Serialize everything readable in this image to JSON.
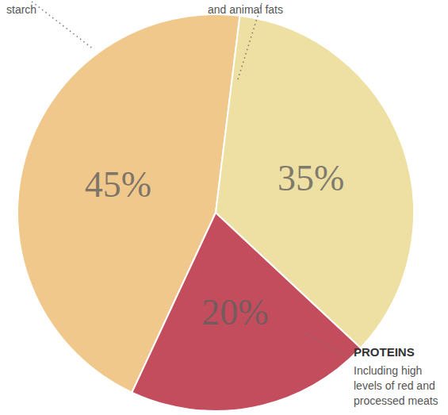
{
  "chart_data": {
    "type": "pie",
    "values": [
      45,
      35,
      20
    ],
    "value_labels": [
      "45%",
      "35%",
      "20%"
    ],
    "colors": [
      "#f1c88c",
      "#eee0a2",
      "#c44d5d"
    ],
    "data_labels": true,
    "annotations": [
      {
        "text": "starch"
      },
      {
        "text": "and animal fats"
      },
      {
        "title": "PROTEINS",
        "text": "Including high levels of red and processed meats"
      }
    ]
  }
}
